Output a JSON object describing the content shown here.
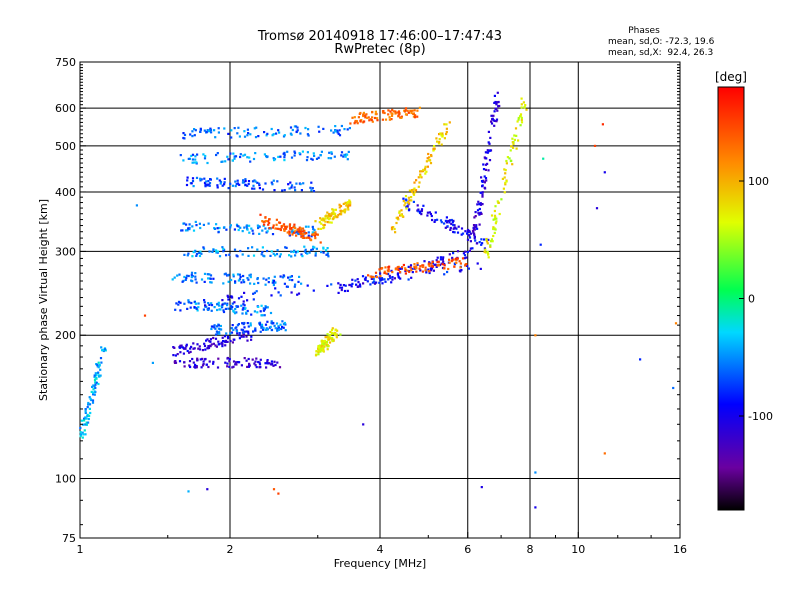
{
  "chart_data": {
    "type": "scatter",
    "title": "Tromsø 20140918 17:46:00–17:47:43",
    "subtitle": "RwPretec (8p)",
    "stats": {
      "heading": "Phases",
      "line1": "mean, sd,O: -72.3, 19.6",
      "line2": "mean, sd,X:  92.4, 26.3"
    },
    "xlabel": "Frequency [MHz]",
    "ylabel": "Stationary phase Virtual Height [km]",
    "x_scale": "log2",
    "y_scale": "log",
    "xlim": [
      1,
      16
    ],
    "ylim": [
      75,
      750
    ],
    "x_ticks": [
      1,
      2,
      4,
      6,
      8,
      10,
      16
    ],
    "x_tick_labels": [
      "1",
      "2",
      "4",
      "6",
      "8",
      "10",
      "16"
    ],
    "y_ticks": [
      75,
      100,
      200,
      300,
      400,
      500,
      600,
      750
    ],
    "y_tick_labels": [
      "75",
      "100",
      "200",
      "300",
      "400",
      "500",
      "600",
      "750"
    ],
    "x_gridlines": [
      2,
      4,
      6,
      8,
      10
    ],
    "y_gridlines": [
      100,
      200,
      300,
      400,
      500,
      600
    ],
    "grid": true,
    "colorbar": {
      "label": "[deg]",
      "range": [
        -180,
        180
      ],
      "ticks": [
        -100,
        0,
        100
      ],
      "tick_labels": [
        "-100",
        "0",
        "100"
      ]
    },
    "series": [
      {
        "f": [
          1.0,
          1.12
        ],
        "h": [
          120,
          190
        ],
        "phase": -40
      },
      {
        "f": [
          1.55,
          2.5
        ],
        "h": [
          175,
          175
        ],
        "phase": -115
      },
      {
        "f": [
          1.55,
          2.2
        ],
        "h": [
          185,
          200
        ],
        "phase": -110
      },
      {
        "f": [
          1.8,
          2.6
        ],
        "h": [
          205,
          210
        ],
        "phase": -60
      },
      {
        "f": [
          1.6,
          2.4
        ],
        "h": [
          232,
          225
        ],
        "phase": -55
      },
      {
        "f": [
          1.55,
          2.8
        ],
        "h": [
          265,
          260
        ],
        "phase": -60
      },
      {
        "f": [
          1.6,
          3.2
        ],
        "h": [
          300,
          300
        ],
        "phase": -50
      },
      {
        "f": [
          1.6,
          3.0
        ],
        "h": [
          340,
          330
        ],
        "phase": -55
      },
      {
        "f": [
          1.6,
          3.0
        ],
        "h": [
          420,
          410
        ],
        "phase": -70
      },
      {
        "f": [
          1.6,
          3.5
        ],
        "h": [
          470,
          480
        ],
        "phase": -55
      },
      {
        "f": [
          1.6,
          3.5
        ],
        "h": [
          530,
          540
        ],
        "phase": -60
      },
      {
        "f": [
          1.55,
          6.3
        ],
        "h": [
          230,
          280
        ],
        "phase": -85
      },
      {
        "f": [
          3.3,
          6.2
        ],
        "h": [
          250,
          300
        ],
        "phase": -100
      },
      {
        "f": [
          3.8,
          6.0
        ],
        "h": [
          270,
          285
        ],
        "phase": 140
      },
      {
        "f": [
          4.5,
          6.6
        ],
        "h": [
          380,
          310
        ],
        "phase": -95
      },
      {
        "f": [
          6.2,
          6.9
        ],
        "h": [
          330,
          640
        ],
        "phase": -110
      },
      {
        "f": [
          6.5,
          7.8
        ],
        "h": [
          290,
          620
        ],
        "phase": 70
      },
      {
        "f": [
          4.2,
          5.5
        ],
        "h": [
          330,
          560
        ],
        "phase": 90
      },
      {
        "f": [
          3.0,
          3.3
        ],
        "h": [
          185,
          205
        ],
        "phase": 75
      },
      {
        "f": [
          3.0,
          3.5
        ],
        "h": [
          340,
          380
        ],
        "phase": 90
      },
      {
        "f": [
          2.3,
          3.0
        ],
        "h": [
          350,
          320
        ],
        "phase": 140
      },
      {
        "f": [
          3.5,
          4.8
        ],
        "h": [
          570,
          590
        ],
        "phase": 130
      }
    ],
    "scattered_points": [
      {
        "f": 1.65,
        "h": 94,
        "phase": -40
      },
      {
        "f": 1.8,
        "h": 95,
        "phase": -110
      },
      {
        "f": 2.45,
        "h": 95,
        "phase": 140
      },
      {
        "f": 2.5,
        "h": 93,
        "phase": 150
      },
      {
        "f": 6.4,
        "h": 96,
        "phase": -105
      },
      {
        "f": 8.2,
        "h": 87,
        "phase": -100
      },
      {
        "f": 8.2,
        "h": 103,
        "phase": -50
      },
      {
        "f": 11.3,
        "h": 113,
        "phase": 130
      },
      {
        "f": 13.3,
        "h": 178,
        "phase": -80
      },
      {
        "f": 15.5,
        "h": 155,
        "phase": -60
      },
      {
        "f": 15.7,
        "h": 212,
        "phase": 120
      },
      {
        "f": 11.2,
        "h": 555,
        "phase": 160
      },
      {
        "f": 11.3,
        "h": 440,
        "phase": -100
      },
      {
        "f": 10.8,
        "h": 500,
        "phase": 150
      },
      {
        "f": 10.9,
        "h": 370,
        "phase": -110
      },
      {
        "f": 8.5,
        "h": 470,
        "phase": -10
      },
      {
        "f": 8.4,
        "h": 310,
        "phase": -80
      },
      {
        "f": 1.3,
        "h": 375,
        "phase": -50
      },
      {
        "f": 1.35,
        "h": 220,
        "phase": 150
      },
      {
        "f": 1.4,
        "h": 175,
        "phase": -45
      },
      {
        "f": 3.7,
        "h": 130,
        "phase": -110
      },
      {
        "f": 8.2,
        "h": 200,
        "phase": 120
      }
    ]
  }
}
